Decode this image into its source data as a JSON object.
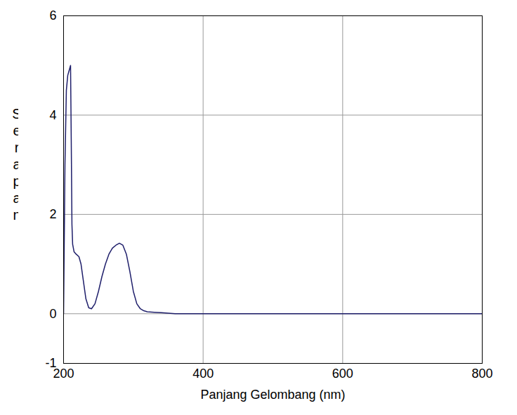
{
  "chart_data": {
    "type": "line",
    "x_label": "Panjang Gelombang (nm)",
    "y_label": "Serapan",
    "x": [
      200,
      202,
      204,
      206,
      208,
      210,
      211,
      212,
      213,
      215,
      218,
      222,
      225,
      228,
      232,
      236,
      240,
      245,
      250,
      255,
      260,
      265,
      270,
      275,
      280,
      285,
      290,
      295,
      300,
      305,
      310,
      315,
      320,
      330,
      340,
      350,
      360,
      400,
      500,
      600,
      700,
      800
    ],
    "values": [
      0,
      3.0,
      4.5,
      4.8,
      4.9,
      5.0,
      3.5,
      1.8,
      1.4,
      1.25,
      1.2,
      1.15,
      1.0,
      0.7,
      0.3,
      0.12,
      0.1,
      0.2,
      0.45,
      0.75,
      1.0,
      1.2,
      1.32,
      1.38,
      1.42,
      1.38,
      1.2,
      0.85,
      0.45,
      0.2,
      0.1,
      0.06,
      0.04,
      0.03,
      0.02,
      0.01,
      0,
      0,
      0,
      0,
      0,
      0
    ],
    "color": "#1f1f6b",
    "xlim": [
      200,
      800
    ],
    "xticks": [
      200,
      400,
      600,
      800
    ],
    "ylim": [
      -1,
      6
    ],
    "yticks": [
      -1,
      0,
      2,
      4,
      6
    ],
    "grid": true
  }
}
